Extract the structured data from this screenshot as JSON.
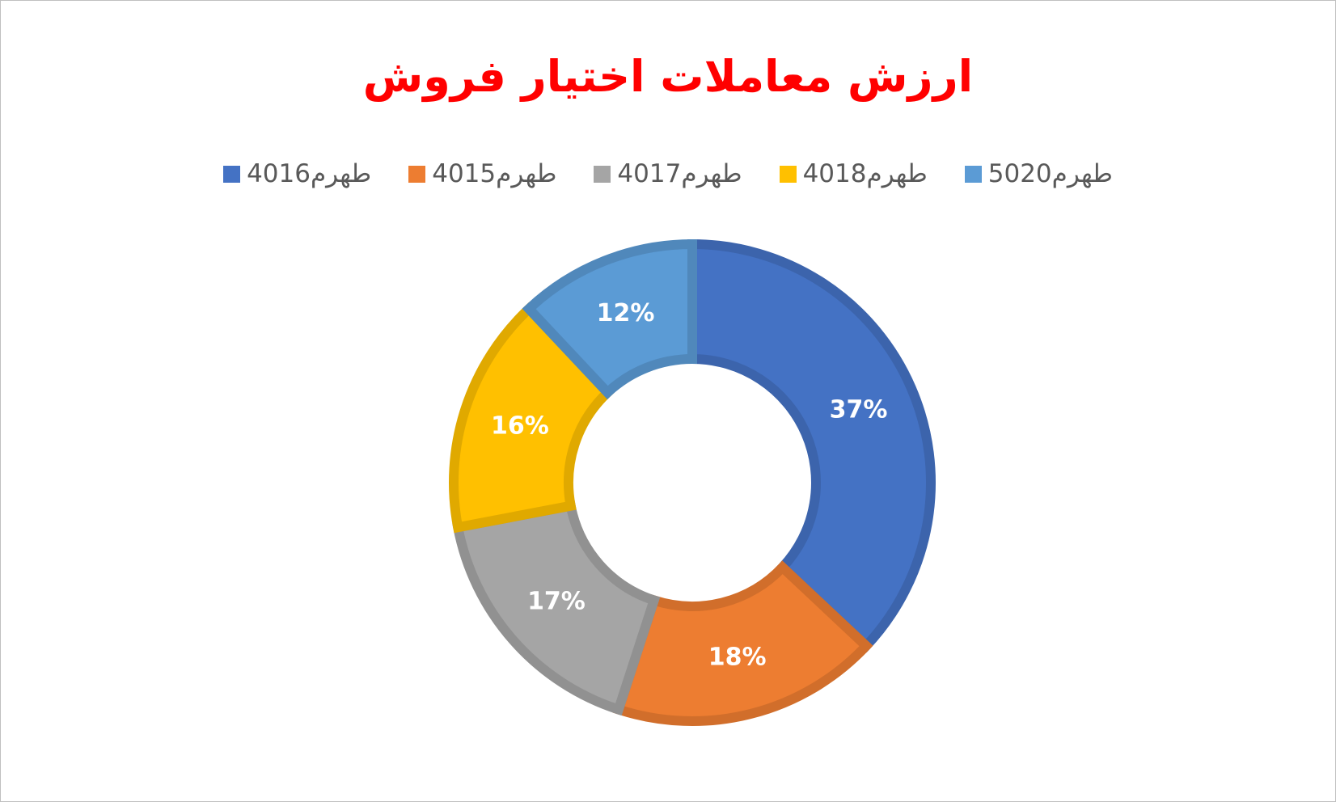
{
  "chart_data": {
    "type": "donut",
    "title": "ارزش معاملات اختیار فروش",
    "categories": [
      "طهرم4016",
      "طهرم4015",
      "طهرم4017",
      "طهرم4018",
      "طهرم5020"
    ],
    "series": [
      {
        "name": "ارزش معاملات اختیار فروش",
        "values": [
          37,
          18,
          17,
          16,
          12
        ],
        "value_labels": [
          "37%",
          "18%",
          "17%",
          "16%",
          "12%"
        ]
      }
    ],
    "colors": [
      "#4472c4",
      "#ed7d31",
      "#a5a5a5",
      "#ffc000",
      "#5b9bd5"
    ],
    "legend": "top"
  }
}
